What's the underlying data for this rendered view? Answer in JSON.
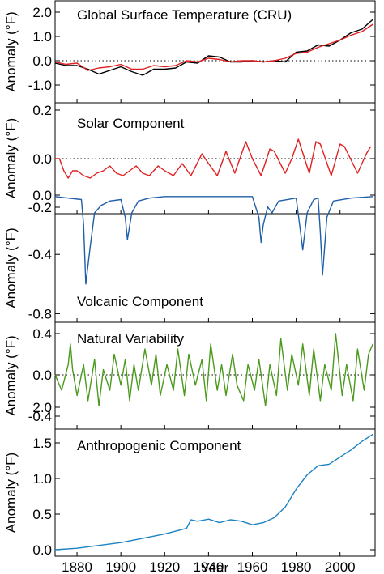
{
  "figure": {
    "xlabel": "Year",
    "xticks": [
      1880,
      1900,
      1920,
      1940,
      1960,
      1980,
      2000
    ]
  },
  "colors": {
    "black": "#000000",
    "red": "#e02020",
    "blue": "#1f5ea8",
    "green": "#4a9a1c",
    "cyan": "#1b82c4"
  },
  "chart_data": [
    {
      "type": "line",
      "title": "Global Surface Temperature (CRU)",
      "ylabel": "Anomaly (°F)",
      "xlim": [
        1870,
        2016
      ],
      "ylim": [
        -1.45,
        2.3
      ],
      "yticks": [
        "2.0",
        "1.0",
        "0.0",
        "-1.0"
      ],
      "ytick_values": [
        2.0,
        1.0,
        0.0,
        -1.0
      ],
      "zero_line": true,
      "series": [
        {
          "color": "black",
          "x": [
            1870,
            1875,
            1880,
            1885,
            1890,
            1895,
            1900,
            1905,
            1910,
            1915,
            1920,
            1925,
            1930,
            1935,
            1940,
            1945,
            1950,
            1955,
            1960,
            1965,
            1970,
            1975,
            1980,
            1985,
            1990,
            1995,
            2000,
            2005,
            2010,
            2015
          ],
          "values": [
            -0.1,
            -0.2,
            -0.2,
            -0.35,
            -0.55,
            -0.4,
            -0.25,
            -0.45,
            -0.6,
            -0.35,
            -0.35,
            -0.3,
            -0.05,
            -0.1,
            0.2,
            0.15,
            -0.05,
            -0.05,
            0.0,
            -0.05,
            0.0,
            -0.05,
            0.35,
            0.4,
            0.65,
            0.6,
            0.85,
            1.15,
            1.3,
            1.7
          ]
        },
        {
          "color": "red",
          "x": [
            1870,
            1875,
            1880,
            1885,
            1890,
            1895,
            1900,
            1905,
            1910,
            1915,
            1920,
            1925,
            1930,
            1935,
            1940,
            1945,
            1950,
            1955,
            1960,
            1965,
            1970,
            1975,
            1980,
            1985,
            1990,
            1995,
            2000,
            2005,
            2010,
            2015
          ],
          "values": [
            -0.05,
            -0.15,
            -0.1,
            -0.4,
            -0.3,
            -0.25,
            -0.15,
            -0.35,
            -0.35,
            -0.2,
            -0.25,
            -0.2,
            0.0,
            -0.05,
            0.1,
            0.05,
            -0.05,
            0.0,
            0.0,
            -0.05,
            0.0,
            0.1,
            0.3,
            0.35,
            0.55,
            0.7,
            0.85,
            1.05,
            1.2,
            1.5
          ]
        }
      ]
    },
    {
      "type": "line",
      "title": "Solar Component",
      "ylabel": "Anomaly (°F)",
      "xlim": [
        1870,
        2016
      ],
      "ylim": [
        -0.215,
        0.22
      ],
      "yticks": [
        "0.2",
        "0.0",
        "-0.2"
      ],
      "ytick_values": [
        0.2,
        0.0,
        -0.2
      ],
      "zero_line": true,
      "series": [
        {
          "color": "red",
          "x": [
            1870,
            1872,
            1874,
            1876,
            1878,
            1880,
            1883,
            1886,
            1889,
            1892,
            1895,
            1898,
            1901,
            1904,
            1907,
            1910,
            1913,
            1917,
            1920,
            1924,
            1928,
            1932,
            1937,
            1940,
            1944,
            1948,
            1952,
            1957,
            1960,
            1964,
            1968,
            1970,
            1975,
            1978,
            1981,
            1986,
            1989,
            1991,
            1996,
            2000,
            2002,
            2008,
            2012,
            2014
          ],
          "values": [
            0.0,
            0.0,
            -0.05,
            -0.08,
            -0.05,
            -0.05,
            -0.07,
            -0.08,
            -0.06,
            -0.05,
            -0.03,
            -0.06,
            -0.07,
            -0.05,
            -0.03,
            -0.06,
            -0.07,
            -0.03,
            -0.05,
            -0.07,
            -0.02,
            -0.07,
            0.02,
            -0.02,
            -0.07,
            0.03,
            -0.06,
            0.07,
            0.0,
            -0.07,
            0.04,
            0.03,
            -0.06,
            0.0,
            0.08,
            -0.06,
            0.07,
            0.06,
            -0.07,
            0.06,
            0.05,
            -0.06,
            0.02,
            0.05
          ]
        }
      ]
    },
    {
      "type": "line",
      "title": "Volcanic Component",
      "ylabel": "Anomaly (°F)",
      "xlim": [
        1870,
        2016
      ],
      "ylim": [
        -0.81,
        0.02
      ],
      "yticks": [
        "0.0",
        "-0.4",
        "-0.8"
      ],
      "ytick_values": [
        0.0,
        -0.4,
        -0.8
      ],
      "zero_line": false,
      "series": [
        {
          "color": "blue",
          "x": [
            1870,
            1876,
            1882,
            1883,
            1884,
            1886,
            1888,
            1891,
            1895,
            1900,
            1902,
            1903,
            1905,
            1908,
            1913,
            1920,
            1930,
            1945,
            1960,
            1963,
            1964,
            1965,
            1967,
            1969,
            1972,
            1980,
            1982,
            1983,
            1985,
            1988,
            1990,
            1991,
            1992,
            1994,
            1997,
            2005,
            2015
          ],
          "values": [
            -0.01,
            -0.02,
            -0.03,
            -0.2,
            -0.6,
            -0.35,
            -0.12,
            -0.07,
            -0.04,
            -0.03,
            -0.15,
            -0.3,
            -0.12,
            -0.04,
            -0.02,
            -0.01,
            -0.01,
            -0.01,
            -0.01,
            -0.15,
            -0.32,
            -0.2,
            -0.08,
            -0.12,
            -0.04,
            -0.02,
            -0.25,
            -0.37,
            -0.12,
            -0.03,
            -0.02,
            -0.25,
            -0.54,
            -0.15,
            -0.04,
            -0.02,
            -0.01
          ]
        }
      ]
    },
    {
      "type": "line",
      "title": "Natural Variability",
      "ylabel": "Anomaly (°F)",
      "xlim": [
        1870,
        2016
      ],
      "ylim": [
        -0.45,
        0.45
      ],
      "yticks": [
        "0.4",
        "0.0",
        "-0.4"
      ],
      "ytick_values": [
        0.4,
        0.0,
        -0.4
      ],
      "zero_line": true,
      "series": [
        {
          "color": "green",
          "x": [
            1870,
            1873,
            1876,
            1877,
            1878,
            1880,
            1883,
            1885,
            1888,
            1890,
            1892,
            1895,
            1897,
            1900,
            1902,
            1904,
            1906,
            1908,
            1911,
            1914,
            1916,
            1918,
            1921,
            1924,
            1926,
            1929,
            1931,
            1934,
            1937,
            1939,
            1941,
            1944,
            1946,
            1948,
            1951,
            1953,
            1956,
            1958,
            1961,
            1963,
            1966,
            1968,
            1971,
            1973,
            1976,
            1978,
            1981,
            1983,
            1986,
            1988,
            1991,
            1993,
            1996,
            1998,
            2001,
            2003,
            2006,
            2008,
            2011,
            2013,
            2015
          ],
          "values": [
            0.0,
            -0.15,
            0.1,
            0.3,
            0.05,
            -0.2,
            0.1,
            -0.25,
            0.15,
            -0.3,
            0.05,
            -0.15,
            0.2,
            -0.1,
            0.15,
            -0.25,
            0.1,
            -0.15,
            0.25,
            -0.1,
            0.2,
            -0.2,
            0.1,
            -0.15,
            0.25,
            -0.2,
            0.2,
            -0.1,
            0.15,
            -0.25,
            0.3,
            -0.15,
            0.1,
            -0.2,
            0.2,
            -0.1,
            -0.25,
            0.1,
            -0.15,
            0.15,
            -0.3,
            0.1,
            -0.2,
            0.35,
            -0.15,
            0.2,
            -0.1,
            0.3,
            -0.2,
            0.25,
            -0.25,
            0.1,
            -0.15,
            0.4,
            -0.2,
            0.1,
            -0.25,
            0.25,
            -0.15,
            0.2,
            0.3
          ]
        }
      ]
    },
    {
      "type": "line",
      "title": "Anthropogenic Component",
      "ylabel": "Anomaly (°F)",
      "xlim": [
        1870,
        2016
      ],
      "ylim": [
        -0.1,
        2.05
      ],
      "yticks": [
        "2.0",
        "1.5",
        "1.0",
        "0.5",
        "0.0"
      ],
      "ytick_values": [
        2.0,
        1.5,
        1.0,
        0.5,
        0.0
      ],
      "zero_line": false,
      "series": [
        {
          "color": "cyan",
          "x": [
            1870,
            1880,
            1890,
            1900,
            1910,
            1920,
            1925,
            1930,
            1932,
            1935,
            1940,
            1945,
            1950,
            1955,
            1960,
            1965,
            1970,
            1975,
            1980,
            1985,
            1990,
            1995,
            2000,
            2005,
            2010,
            2015
          ],
          "values": [
            0.0,
            0.02,
            0.06,
            0.1,
            0.16,
            0.22,
            0.26,
            0.3,
            0.42,
            0.4,
            0.43,
            0.38,
            0.42,
            0.4,
            0.35,
            0.38,
            0.45,
            0.6,
            0.85,
            1.05,
            1.18,
            1.2,
            1.3,
            1.4,
            1.52,
            1.62
          ]
        }
      ]
    }
  ]
}
